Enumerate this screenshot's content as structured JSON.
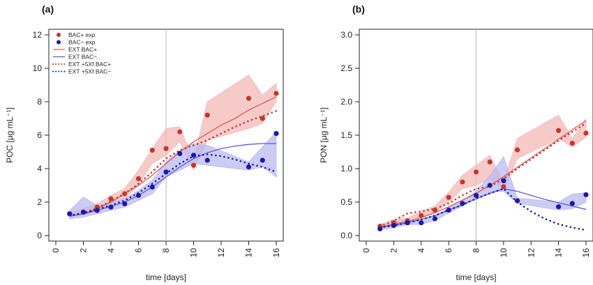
{
  "colors": {
    "bac_plus": "#c0392b",
    "bac_plus_line": "#e0584f",
    "bac_plus_band": "#f4b8b8",
    "bac_minus": "#1a1aa8",
    "bac_minus_line": "#5a5ad6",
    "bac_minus_band": "#b9b9f0",
    "axis": "#222222",
    "vline": "#b8b8b8"
  },
  "chart_data": [
    {
      "type": "line",
      "panel_label": "(a)",
      "xlabel": "time [days]",
      "ylabel": "POC [µg mL⁻¹]",
      "xlim": [
        0,
        16
      ],
      "ylim": [
        0,
        12
      ],
      "xticks": [
        0,
        2,
        4,
        6,
        8,
        10,
        12,
        14,
        16
      ],
      "yticks": [
        0,
        2,
        4,
        6,
        8,
        10,
        12
      ],
      "xtick_labels": [
        "0",
        "2",
        "4",
        "6",
        "8",
        "10",
        "12",
        "14",
        "16"
      ],
      "ytick_labels": [
        "0",
        "2",
        "4",
        "6",
        "8",
        "10",
        "12"
      ],
      "vline_x": 8,
      "legend": {
        "placement": "top-left",
        "entries": [
          "BAC+ exp",
          "BAC− exp",
          "EXT BAC+",
          "EXT BAC−",
          "EXT +5Xf BAC+",
          "EXT +5Xf BAC−"
        ]
      },
      "series": [
        {
          "name": "BAC+ exp",
          "kind": "points",
          "color": "bac_plus",
          "x": [
            1,
            2,
            3,
            4,
            5,
            6,
            7,
            8,
            9,
            10,
            11,
            14,
            15,
            16
          ],
          "y": [
            1.3,
            1.4,
            1.7,
            2.2,
            2.5,
            3.4,
            5.1,
            5.2,
            6.2,
            4.2,
            7.2,
            8.2,
            7.0,
            8.5
          ]
        },
        {
          "name": "BAC− exp",
          "kind": "points",
          "color": "bac_minus",
          "x": [
            1,
            2,
            3,
            4,
            5,
            6,
            7,
            8,
            9,
            10,
            11,
            14,
            15,
            16
          ],
          "y": [
            1.3,
            1.4,
            1.5,
            1.7,
            1.9,
            2.4,
            2.9,
            3.8,
            4.9,
            4.8,
            4.5,
            4.1,
            4.5,
            6.1
          ]
        },
        {
          "name": "EXT BAC+",
          "kind": "line",
          "color": "bac_plus_line",
          "x": [
            1,
            2,
            3,
            4,
            5,
            6,
            7,
            8,
            9,
            10,
            11,
            12,
            13,
            14,
            15,
            16
          ],
          "y": [
            1.15,
            1.3,
            1.6,
            2.0,
            2.5,
            3.0,
            3.6,
            4.3,
            5.0,
            5.6,
            6.1,
            6.6,
            7.0,
            7.5,
            7.9,
            8.3
          ]
        },
        {
          "name": "EXT BAC−",
          "kind": "line",
          "color": "bac_minus_line",
          "x": [
            1,
            2,
            3,
            4,
            5,
            6,
            7,
            8,
            9,
            10,
            11,
            12,
            13,
            14,
            15,
            16
          ],
          "y": [
            1.15,
            1.3,
            1.5,
            1.75,
            2.0,
            2.4,
            2.9,
            3.5,
            4.1,
            4.6,
            4.95,
            5.2,
            5.35,
            5.45,
            5.5,
            5.5
          ]
        },
        {
          "name": "EXT +5Xf BAC+",
          "kind": "dotted",
          "color": "bac_plus",
          "x": [
            1,
            2,
            3,
            4,
            5,
            6,
            7,
            8,
            9,
            10,
            11,
            12,
            13,
            14,
            15,
            16
          ],
          "y": [
            1.2,
            1.35,
            1.65,
            2.05,
            2.5,
            3.1,
            3.8,
            4.6,
            5.1,
            5.4,
            5.7,
            6.1,
            6.5,
            6.85,
            7.15,
            7.45
          ]
        },
        {
          "name": "EXT +5Xf BAC−",
          "kind": "dotted",
          "color": "bac_minus",
          "x": [
            1,
            2,
            3,
            4,
            5,
            6,
            7,
            8,
            9,
            10,
            11,
            12,
            13,
            14,
            15,
            16
          ],
          "y": [
            1.2,
            1.35,
            1.55,
            1.8,
            2.1,
            2.55,
            3.1,
            3.7,
            4.3,
            4.75,
            4.85,
            4.75,
            4.55,
            4.3,
            4.1,
            3.8
          ]
        }
      ],
      "bands": [
        {
          "name": "BAC+ exp",
          "color": "bac_plus_band",
          "x": [
            1,
            2,
            3,
            4,
            5,
            6,
            7,
            8,
            9,
            10,
            11,
            14,
            15,
            16
          ],
          "low": [
            1.2,
            1.2,
            1.5,
            1.9,
            2.2,
            3.0,
            4.3,
            4.8,
            5.6,
            3.9,
            5.7,
            6.4,
            6.7,
            8.0
          ],
          "high": [
            1.4,
            1.6,
            1.9,
            2.4,
            2.8,
            3.9,
            5.2,
            6.4,
            6.5,
            4.5,
            8.0,
            9.6,
            8.4,
            9.1
          ]
        },
        {
          "name": "BAC− exp",
          "color": "bac_minus_band",
          "x": [
            1,
            2,
            3,
            4,
            5,
            6,
            7,
            8,
            9,
            10,
            11,
            14,
            15,
            16
          ],
          "low": [
            1.0,
            1.1,
            1.3,
            1.5,
            1.7,
            2.1,
            2.5,
            3.5,
            3.9,
            4.3,
            4.2,
            3.9,
            4.1,
            3.5
          ],
          "high": [
            1.5,
            2.3,
            1.8,
            2.0,
            2.2,
            2.7,
            3.3,
            4.4,
            5.1,
            5.5,
            5.4,
            4.4,
            5.3,
            6.2
          ]
        }
      ]
    },
    {
      "type": "line",
      "panel_label": "(b)",
      "xlabel": "time [days]",
      "ylabel": "PON [µg mL⁻¹]",
      "xlim": [
        0,
        16
      ],
      "ylim": [
        0,
        3
      ],
      "xticks": [
        0,
        2,
        4,
        6,
        8,
        10,
        12,
        14,
        16
      ],
      "yticks": [
        0,
        0.5,
        1,
        1.5,
        2,
        2.5,
        3
      ],
      "xtick_labels": [
        "0",
        "2",
        "4",
        "6",
        "8",
        "10",
        "12",
        "14",
        "16"
      ],
      "ytick_labels": [
        "0.0",
        "0.5",
        "1.0",
        "1.5",
        "2.0",
        "2.5",
        "3.0"
      ],
      "vline_x": 8,
      "series": [
        {
          "name": "BAC+ exp",
          "kind": "points",
          "color": "bac_plus",
          "x": [
            1,
            2,
            3,
            4,
            5,
            6,
            7,
            8,
            9,
            10,
            11,
            14,
            15,
            16
          ],
          "y": [
            0.14,
            0.19,
            0.22,
            0.3,
            0.38,
            0.57,
            0.8,
            0.95,
            1.1,
            0.73,
            1.28,
            1.57,
            1.38,
            1.53
          ]
        },
        {
          "name": "BAC− exp",
          "kind": "points",
          "color": "bac_minus",
          "x": [
            1,
            2,
            3,
            4,
            5,
            6,
            7,
            8,
            9,
            10,
            11,
            14,
            15,
            16
          ],
          "y": [
            0.1,
            0.15,
            0.19,
            0.19,
            0.25,
            0.38,
            0.48,
            0.6,
            0.75,
            0.82,
            0.52,
            0.43,
            0.48,
            0.61
          ]
        },
        {
          "name": "EXT BAC+",
          "kind": "line",
          "color": "bac_plus_line",
          "x": [
            1,
            2,
            3,
            4,
            5,
            6,
            7,
            8,
            9,
            10,
            11,
            12,
            13,
            14,
            15,
            16
          ],
          "y": [
            0.13,
            0.17,
            0.21,
            0.27,
            0.34,
            0.43,
            0.53,
            0.63,
            0.75,
            0.88,
            1.02,
            1.16,
            1.3,
            1.44,
            1.58,
            1.72
          ]
        },
        {
          "name": "EXT BAC−",
          "kind": "line",
          "color": "bac_minus_line",
          "x": [
            1,
            2,
            3,
            4,
            5,
            6,
            7,
            8,
            9,
            10,
            11,
            12,
            13,
            14,
            15,
            16
          ],
          "y": [
            0.12,
            0.15,
            0.19,
            0.24,
            0.3,
            0.38,
            0.46,
            0.55,
            0.63,
            0.7,
            0.66,
            0.6,
            0.54,
            0.49,
            0.44,
            0.39
          ]
        },
        {
          "name": "EXT +5Xf BAC+",
          "kind": "dotted",
          "color": "bac_plus",
          "x": [
            1,
            2,
            3,
            4,
            5,
            6,
            7,
            8,
            9,
            10,
            11,
            12,
            13,
            14,
            15,
            16
          ],
          "y": [
            0.14,
            0.22,
            0.33,
            0.36,
            0.4,
            0.48,
            0.6,
            0.7,
            0.73,
            0.85,
            1.0,
            1.14,
            1.28,
            1.42,
            1.55,
            1.68
          ]
        },
        {
          "name": "EXT +5Xf BAC−",
          "kind": "dotted",
          "color": "bac_minus",
          "x": [
            1,
            2,
            3,
            4,
            5,
            6,
            7,
            8,
            9,
            10,
            11,
            12,
            13,
            14,
            15,
            16
          ],
          "y": [
            0.12,
            0.15,
            0.19,
            0.24,
            0.3,
            0.38,
            0.46,
            0.55,
            0.63,
            0.7,
            0.5,
            0.36,
            0.25,
            0.17,
            0.12,
            0.08
          ]
        }
      ],
      "bands": [
        {
          "name": "BAC+ exp",
          "color": "bac_plus_band",
          "x": [
            1,
            2,
            3,
            4,
            5,
            6,
            7,
            8,
            9,
            10,
            11,
            14,
            15,
            16
          ],
          "low": [
            0.12,
            0.16,
            0.19,
            0.26,
            0.34,
            0.5,
            0.7,
            0.75,
            0.85,
            0.68,
            1.15,
            1.45,
            1.32,
            1.47
          ],
          "high": [
            0.16,
            0.24,
            0.26,
            0.36,
            0.44,
            0.65,
            0.9,
            1.05,
            1.2,
            0.8,
            1.45,
            1.8,
            1.45,
            1.75
          ]
        },
        {
          "name": "BAC− exp",
          "color": "bac_minus_band",
          "x": [
            1,
            2,
            3,
            4,
            5,
            6,
            7,
            8,
            9,
            10,
            11,
            14,
            15,
            16
          ],
          "low": [
            0.08,
            0.12,
            0.16,
            0.17,
            0.22,
            0.34,
            0.44,
            0.56,
            0.65,
            0.66,
            0.48,
            0.38,
            0.4,
            0.5
          ],
          "high": [
            0.12,
            0.2,
            0.23,
            0.22,
            0.28,
            0.42,
            0.52,
            0.66,
            0.9,
            1.18,
            0.56,
            0.5,
            0.62,
            0.64
          ]
        }
      ]
    }
  ]
}
